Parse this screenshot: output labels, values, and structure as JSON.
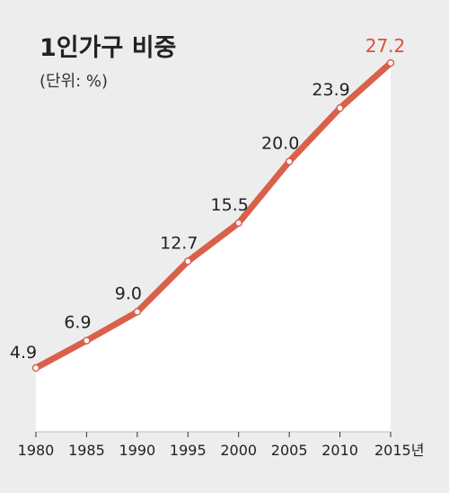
{
  "chart_data": {
    "type": "area",
    "title": "1인가구 비중",
    "subtitle": "(단위: %)",
    "x": [
      "1980",
      "1985",
      "1990",
      "1995",
      "2000",
      "2005",
      "2010",
      "2015"
    ],
    "x_unit_suffix": "년",
    "values": [
      4.9,
      6.9,
      9.0,
      12.7,
      15.5,
      20.0,
      23.9,
      27.2
    ],
    "value_labels": [
      "4.9",
      "6.9",
      "9.0",
      "12.7",
      "15.5",
      "20.0",
      "23.9",
      "27.2"
    ],
    "highlight_last": true,
    "line_color": "#d9604a",
    "highlight_label_color": "#d9503b",
    "area_color": "#ffffff",
    "background_color": "#ededed",
    "grid": false
  }
}
